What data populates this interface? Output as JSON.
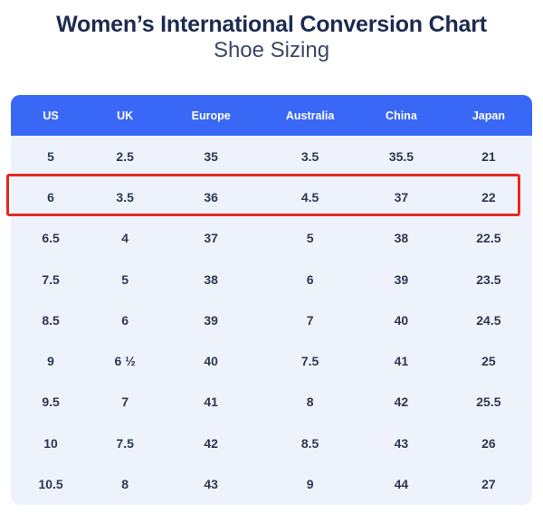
{
  "chart_data": {
    "type": "table",
    "title": "Women’s International Conversion Chart",
    "subtitle": "Shoe Sizing",
    "columns": [
      "US",
      "UK",
      "Europe",
      "Australia",
      "China",
      "Japan"
    ],
    "rows": [
      [
        "5",
        "2.5",
        "35",
        "3.5",
        "35.5",
        "21"
      ],
      [
        "6",
        "3.5",
        "36",
        "4.5",
        "37",
        "22"
      ],
      [
        "6.5",
        "4",
        "37",
        "5",
        "38",
        "22.5"
      ],
      [
        "7.5",
        "5",
        "38",
        "6",
        "39",
        "23.5"
      ],
      [
        "8.5",
        "6",
        "39",
        "7",
        "40",
        "24.5"
      ],
      [
        "9",
        "6 ½",
        "40",
        "7.5",
        "41",
        "25"
      ],
      [
        "9.5",
        "7",
        "41",
        "8",
        "42",
        "25.5"
      ],
      [
        "10",
        "7.5",
        "42",
        "8.5",
        "43",
        "26"
      ],
      [
        "10.5",
        "8",
        "43",
        "9",
        "44",
        "27"
      ]
    ],
    "highlighted_row_index": 1,
    "highlighted_row": [
      "6",
      "3.5",
      "36",
      "4.5",
      "37",
      "22"
    ],
    "legend_position": "none",
    "grid": false
  },
  "colors": {
    "header_bg": "#3a68f6",
    "header_text": "#ffffff",
    "body_bg": "#eef3fb",
    "cell_text": "#2d3851",
    "title_text": "#1d2b50",
    "subtitle_text": "#3a4766",
    "highlight_border": "#e7281d",
    "page_bg": "#ffffff"
  }
}
